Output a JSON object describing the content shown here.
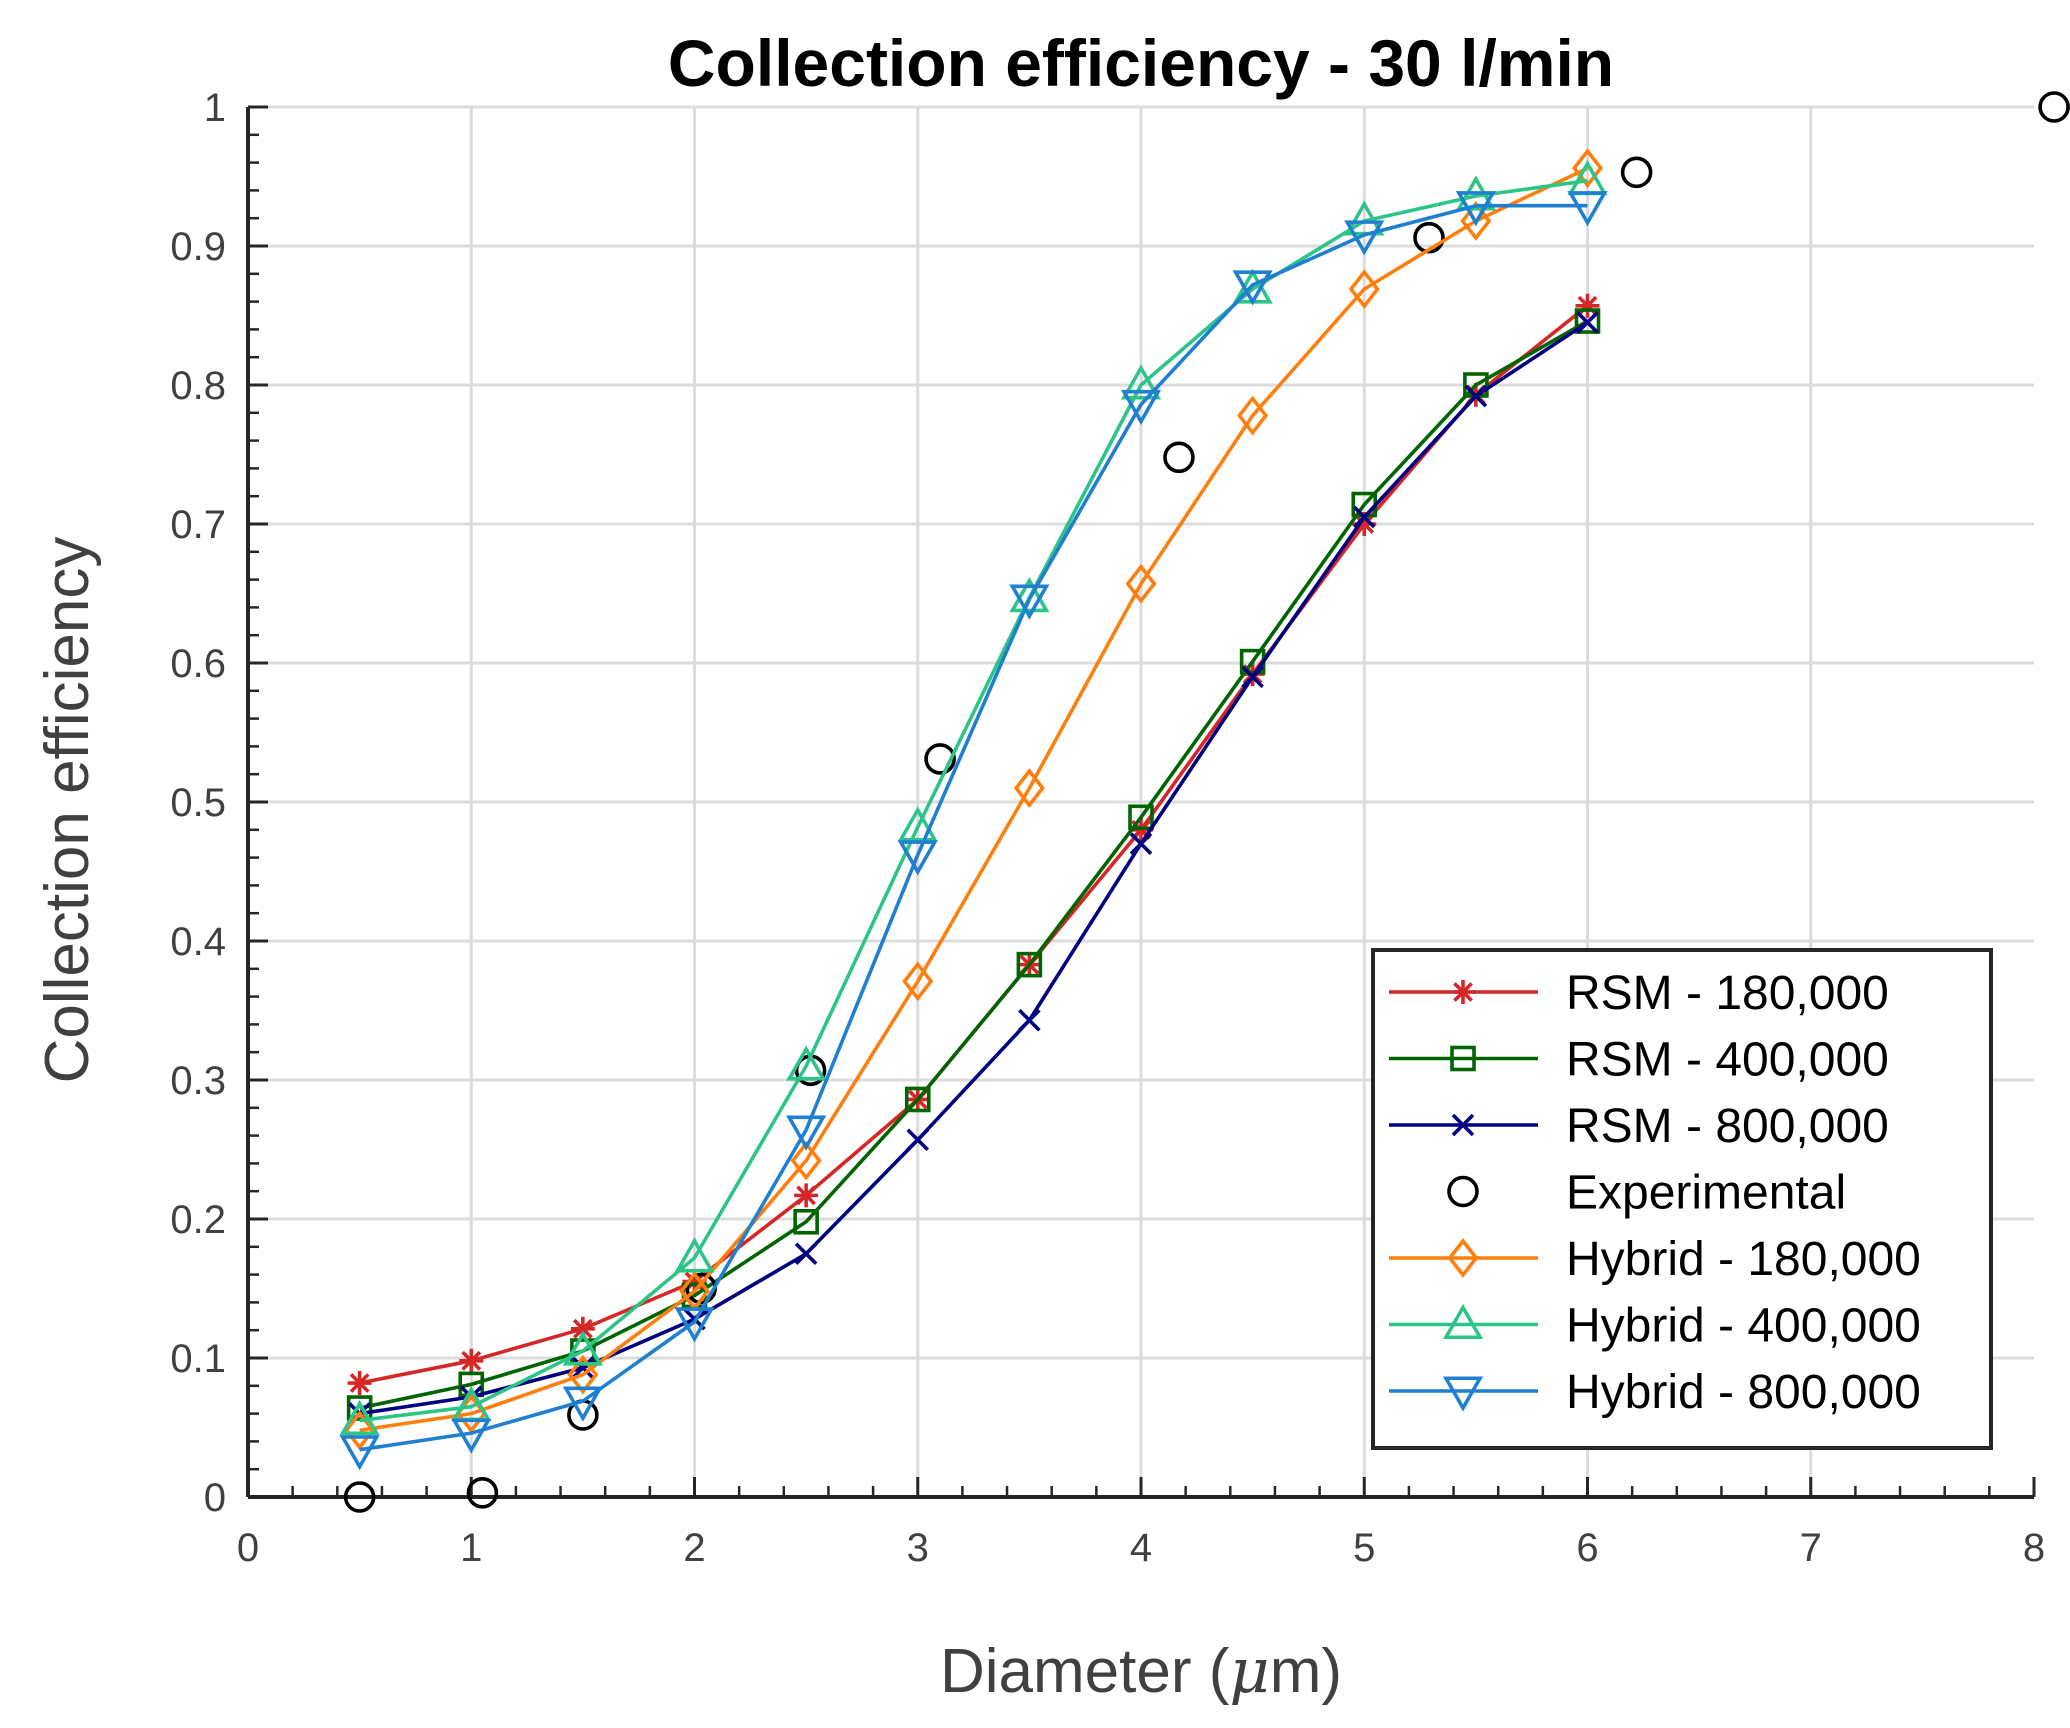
{
  "chart_data": {
    "type": "line",
    "title": "Collection efficiency - 30 l/min",
    "xlabel_prefix": "Diameter (",
    "xlabel_symbol": "μ",
    "xlabel_suffix": "m)",
    "ylabel": "Collection efficiency",
    "xlim": [
      0,
      8
    ],
    "ylim": [
      0,
      1
    ],
    "xticks": [
      0,
      1,
      2,
      3,
      4,
      5,
      6,
      7,
      8
    ],
    "yticks": [
      0,
      0.1,
      0.2,
      0.3,
      0.4,
      0.5,
      0.6,
      0.7,
      0.8,
      0.9,
      1
    ],
    "grid": true,
    "legend_position": "bottom-right",
    "series": [
      {
        "name": "RSM - 180,000",
        "color": "#D62728",
        "marker": "asterisk",
        "line": true,
        "x": [
          0.5,
          1,
          1.5,
          2,
          2.5,
          3,
          3.5,
          4,
          4.5,
          5,
          5.5,
          6
        ],
        "y": [
          0.082,
          0.098,
          0.121,
          0.155,
          0.217,
          0.286,
          0.383,
          0.48,
          0.592,
          0.7,
          0.793,
          0.857
        ]
      },
      {
        "name": "RSM - 400,000",
        "color": "#006400",
        "marker": "square",
        "line": true,
        "x": [
          0.5,
          1,
          1.5,
          2,
          2.5,
          3,
          3.5,
          4,
          4.5,
          5,
          5.5,
          6
        ],
        "y": [
          0.064,
          0.081,
          0.105,
          0.145,
          0.198,
          0.286,
          0.383,
          0.489,
          0.601,
          0.714,
          0.8,
          0.846
        ]
      },
      {
        "name": "RSM - 800,000",
        "color": "#000080",
        "marker": "x",
        "line": true,
        "x": [
          0.5,
          1,
          1.5,
          2,
          2.5,
          3,
          3.5,
          4,
          4.5,
          5,
          5.5,
          6
        ],
        "y": [
          0.06,
          0.072,
          0.093,
          0.128,
          0.175,
          0.257,
          0.343,
          0.47,
          0.59,
          0.705,
          0.792,
          0.845
        ]
      },
      {
        "name": "Experimental",
        "color": "#000000",
        "marker": "circle",
        "line": false,
        "x": [
          0.5,
          1.05,
          1.5,
          2.03,
          2.52,
          3.1,
          4.17,
          5.29,
          6.22,
          8.09
        ],
        "y": [
          0.0,
          0.003,
          0.059,
          0.15,
          0.307,
          0.531,
          0.748,
          0.906,
          0.953,
          1.0
        ]
      },
      {
        "name": "Hybrid - 180,000",
        "color": "#FF7F0E",
        "marker": "diamond",
        "line": true,
        "x": [
          0.5,
          1,
          1.5,
          2,
          2.5,
          3,
          3.5,
          4,
          4.5,
          5,
          5.5,
          6
        ],
        "y": [
          0.048,
          0.06,
          0.088,
          0.148,
          0.242,
          0.371,
          0.51,
          0.657,
          0.778,
          0.869,
          0.918,
          0.956
        ]
      },
      {
        "name": "Hybrid - 400,000",
        "color": "#2CC487",
        "marker": "triangle-up",
        "line": true,
        "x": [
          0.5,
          1,
          1.5,
          2,
          2.5,
          3,
          3.5,
          4,
          4.5,
          5,
          5.5,
          6
        ],
        "y": [
          0.055,
          0.065,
          0.105,
          0.172,
          0.31,
          0.482,
          0.647,
          0.8,
          0.869,
          0.918,
          0.936,
          0.947
        ]
      },
      {
        "name": "Hybrid - 800,000",
        "color": "#1F7FD0",
        "marker": "triangle-down",
        "line": true,
        "x": [
          0.5,
          1,
          1.5,
          2,
          2.5,
          3,
          3.5,
          4,
          4.5,
          5,
          5.5,
          6
        ],
        "y": [
          0.034,
          0.046,
          0.069,
          0.126,
          0.264,
          0.462,
          0.646,
          0.786,
          0.872,
          0.908,
          0.929,
          0.929
        ]
      }
    ]
  }
}
